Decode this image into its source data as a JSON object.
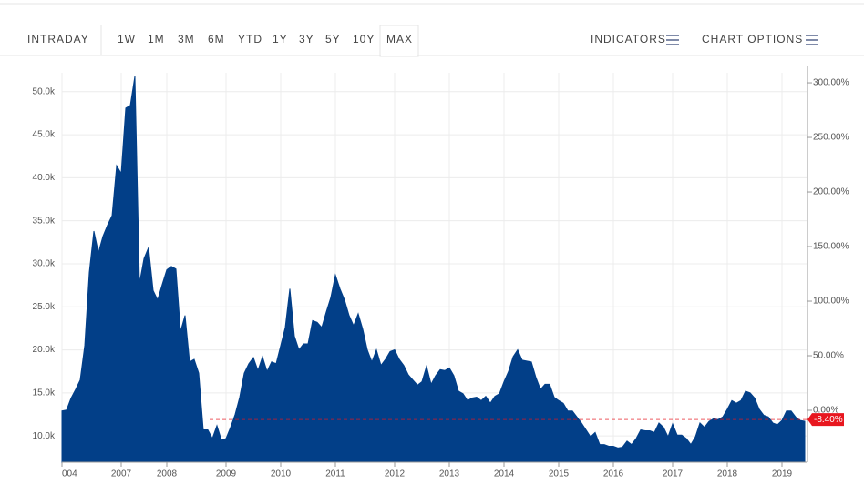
{
  "toolbar": {
    "ranges": [
      "INTRADAY",
      "1W",
      "1M",
      "3M",
      "6M",
      "YTD",
      "1Y",
      "3Y",
      "5Y",
      "10Y",
      "MAX"
    ],
    "selected": "MAX",
    "indicators": "INDICATORS",
    "chart_options": "CHART OPTIONS"
  },
  "chart_data": {
    "type": "area",
    "color": "#023f88",
    "grid": true,
    "values": [
      12900,
      13000,
      14400,
      15400,
      16500,
      20500,
      29000,
      33800,
      31300,
      33200,
      34500,
      35600,
      41400,
      40500,
      48100,
      48400,
      51800,
      27700,
      30600,
      31900,
      26900,
      25800,
      27600,
      29300,
      29700,
      29400,
      22100,
      24000,
      18600,
      18900,
      17300,
      10700,
      10700,
      9700,
      11200,
      9500,
      9700,
      11000,
      12500,
      14500,
      17300,
      18400,
      19100,
      17600,
      19200,
      17500,
      18600,
      18400,
      20500,
      22600,
      27100,
      21600,
      20000,
      20700,
      20700,
      23400,
      23200,
      22600,
      24400,
      26100,
      28700,
      27100,
      25800,
      24000,
      22800,
      24200,
      22400,
      20000,
      18600,
      20000,
      18200,
      18900,
      19800,
      20000,
      18900,
      18200,
      17100,
      16500,
      15900,
      16300,
      18100,
      16000,
      17000,
      17700,
      17600,
      17900,
      17000,
      15200,
      14900,
      14100,
      14400,
      14500,
      14100,
      14600,
      13800,
      14600,
      14900,
      16300,
      17500,
      19200,
      20000,
      18800,
      18700,
      18600,
      16800,
      15400,
      16000,
      16000,
      14500,
      14100,
      13800,
      12900,
      12900,
      12200,
      11500,
      10700,
      9900,
      10400,
      9000,
      9000,
      8800,
      8800,
      8600,
      8700,
      9400,
      9000,
      9700,
      10700,
      10600,
      10600,
      10400,
      11500,
      11000,
      9900,
      11400,
      10100,
      10100,
      9700,
      9000,
      9900,
      11500,
      11000,
      11700,
      12000,
      11900,
      12200,
      13100,
      14100,
      13800,
      14100,
      15200,
      15000,
      14400,
      13100,
      12400,
      12200,
      11500,
      11300,
      11800,
      12900,
      12900,
      12200,
      11800,
      11700
    ],
    "xlim": [
      0,
      163
    ],
    "xticks": [
      {
        "value": 0,
        "label": "004"
      },
      {
        "value": 13,
        "label": "2007"
      },
      {
        "value": 23,
        "label": "2008"
      },
      {
        "value": 36,
        "label": "2009"
      },
      {
        "value": 48,
        "label": "2010"
      },
      {
        "value": 60,
        "label": "2011"
      },
      {
        "value": 73,
        "label": "2012"
      },
      {
        "value": 85,
        "label": "2013"
      },
      {
        "value": 97,
        "label": "2014"
      },
      {
        "value": 109,
        "label": "2015"
      },
      {
        "value": 121,
        "label": "2016"
      },
      {
        "value": 134,
        "label": "2017"
      },
      {
        "value": 146,
        "label": "2018"
      },
      {
        "value": 158,
        "label": "2019"
      }
    ],
    "ylim": [
      6950,
      52200
    ],
    "yticks": [
      {
        "value": 10000,
        "label": "10.0k"
      },
      {
        "value": 15000,
        "label": "15.0k"
      },
      {
        "value": 20000,
        "label": "20.0k"
      },
      {
        "value": 25000,
        "label": "25.0k"
      },
      {
        "value": 30000,
        "label": "30.0k"
      },
      {
        "value": 35000,
        "label": "35.0k"
      },
      {
        "value": 40000,
        "label": "40.0k"
      },
      {
        "value": 45000,
        "label": "45.0k"
      },
      {
        "value": 50000,
        "label": "50.0k"
      }
    ],
    "y2lim": [
      -47.5,
      309.2
    ],
    "y2ticks": [
      {
        "value": 0,
        "label": "0.00%"
      },
      {
        "value": 50,
        "label": "50.00%"
      },
      {
        "value": 100,
        "label": "100.00%"
      },
      {
        "value": 150,
        "label": "150.00%"
      },
      {
        "value": 200,
        "label": "200.00%"
      },
      {
        "value": 250,
        "label": "250.00%"
      },
      {
        "value": 300,
        "label": "300.00%"
      }
    ],
    "last_change": {
      "value": -8.4,
      "label": "-8.40%",
      "axis": "y2",
      "color": "#e8171f"
    }
  }
}
